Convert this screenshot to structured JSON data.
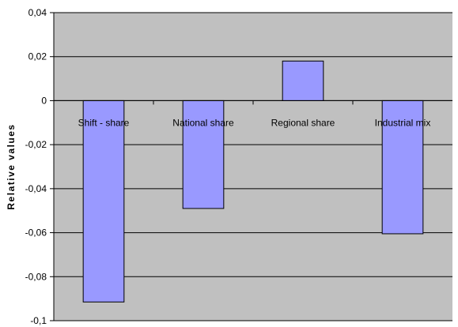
{
  "chart_data": {
    "type": "bar",
    "title": "",
    "xlabel": "",
    "ylabel": "Relative values",
    "categories": [
      "Shift - share",
      "National share",
      "Regional share",
      "Industrial mix"
    ],
    "values": [
      -0.0915,
      -0.049,
      0.018,
      -0.0605
    ],
    "ylim": [
      -0.1,
      0.04
    ],
    "yticks": [
      {
        "value": 0.04,
        "label": "0,04"
      },
      {
        "value": 0.02,
        "label": "0,02"
      },
      {
        "value": 0,
        "label": "0"
      },
      {
        "value": -0.02,
        "label": "-0,02"
      },
      {
        "value": -0.04,
        "label": "-0,04"
      },
      {
        "value": -0.06,
        "label": "-0,06"
      },
      {
        "value": -0.08,
        "label": "-0,08"
      },
      {
        "value": -0.1,
        "label": "-0,1"
      }
    ],
    "grid": true,
    "legend": "none",
    "colors": {
      "plot_background": "#c0c0c0",
      "bar_fill": "#9999ff",
      "bar_stroke": "#000000",
      "gridline": "#000000"
    }
  }
}
